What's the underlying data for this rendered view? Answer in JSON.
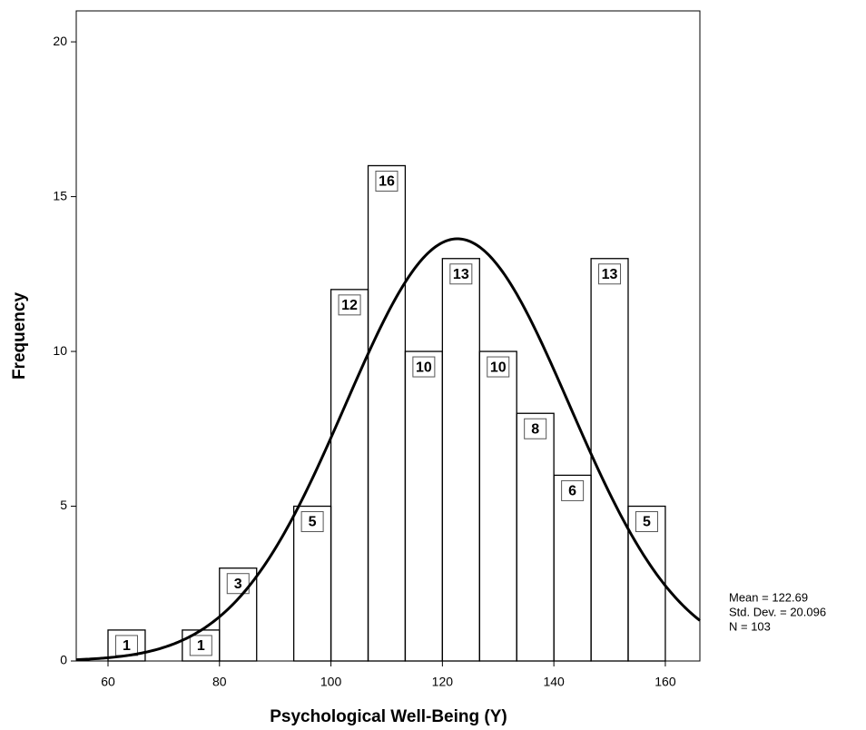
{
  "chart_data": {
    "type": "histogram",
    "x_label": "Psychological Well-Being (Y)",
    "y_label": "Frequency",
    "bins": [
      60,
      66.67,
      73.33,
      80,
      86.67,
      93.33,
      100,
      106.67,
      113.33,
      120,
      126.67,
      133.33,
      140,
      146.67,
      153.33,
      160
    ],
    "values": [
      1,
      0,
      1,
      3,
      0,
      5,
      12,
      16,
      10,
      13,
      10,
      8,
      6,
      13,
      5
    ],
    "color": "#000000",
    "data_labels": true,
    "xlim": [
      54.3,
      166.2
    ],
    "xticks": [
      60,
      80,
      100,
      120,
      140,
      160
    ],
    "ylim": [
      0,
      21
    ],
    "yticks": [
      0,
      5,
      10,
      15,
      20
    ],
    "normal_curve": {
      "color": "#000000",
      "mean": {
        "value": 122.69,
        "label": "Mean = 122.69"
      },
      "sd": {
        "value": 20.096,
        "label": "Std. Dev. = 20.096"
      },
      "n": {
        "value": 103,
        "label": "N = 103"
      }
    }
  }
}
